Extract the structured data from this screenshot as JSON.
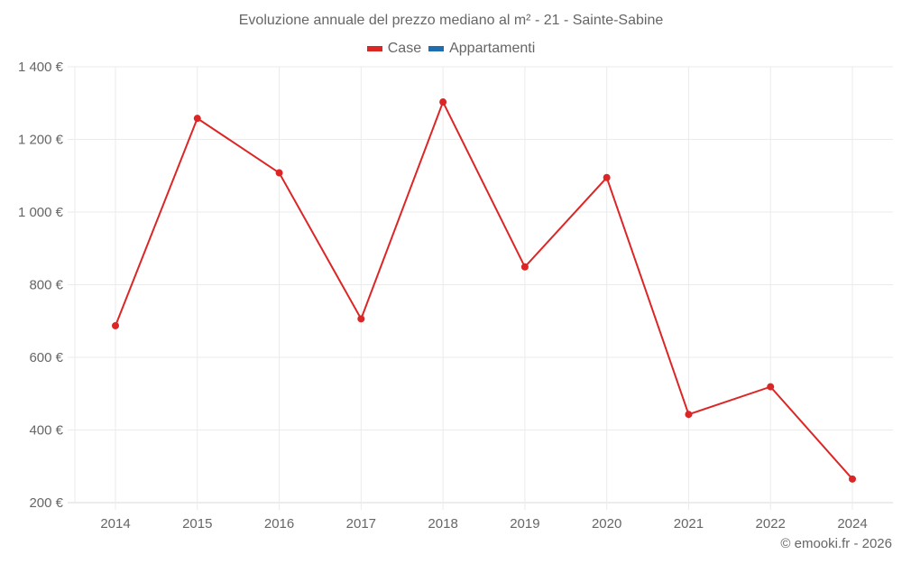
{
  "title": "Evoluzione annuale del prezzo mediano al m² - 21 - Sainte-Sabine",
  "legend": [
    {
      "label": "Case",
      "color": "#dc2626"
    },
    {
      "label": "Appartamenti",
      "color": "#1f6fb0"
    }
  ],
  "credit": "© emooki.fr - 2026",
  "colors": {
    "line": "#dc2626",
    "grid": "#ebebeb",
    "axis": "#d9d9d9",
    "text": "#666666"
  },
  "chart_data": {
    "type": "line",
    "title": "Evoluzione annuale del prezzo mediano al m² - 21 - Sainte-Sabine",
    "xlabel": "",
    "ylabel": "",
    "categories": [
      "2014",
      "2015",
      "2016",
      "2017",
      "2018",
      "2019",
      "2020",
      "2021",
      "2022",
      "2024"
    ],
    "series": [
      {
        "name": "Case",
        "color": "#dc2626",
        "values": [
          687,
          1258,
          1108,
          706,
          1303,
          849,
          1095,
          443,
          519,
          265
        ]
      },
      {
        "name": "Appartamenti",
        "color": "#1f6fb0",
        "values": []
      }
    ],
    "yticks": [
      200,
      400,
      600,
      800,
      1000,
      1200,
      1400
    ],
    "ytick_labels": [
      "200 €",
      "400 €",
      "600 €",
      "800 €",
      "1 000 €",
      "1 200 €",
      "1 400 €"
    ],
    "ylim": [
      200,
      1400
    ],
    "grid": true,
    "legend_position": "top"
  }
}
